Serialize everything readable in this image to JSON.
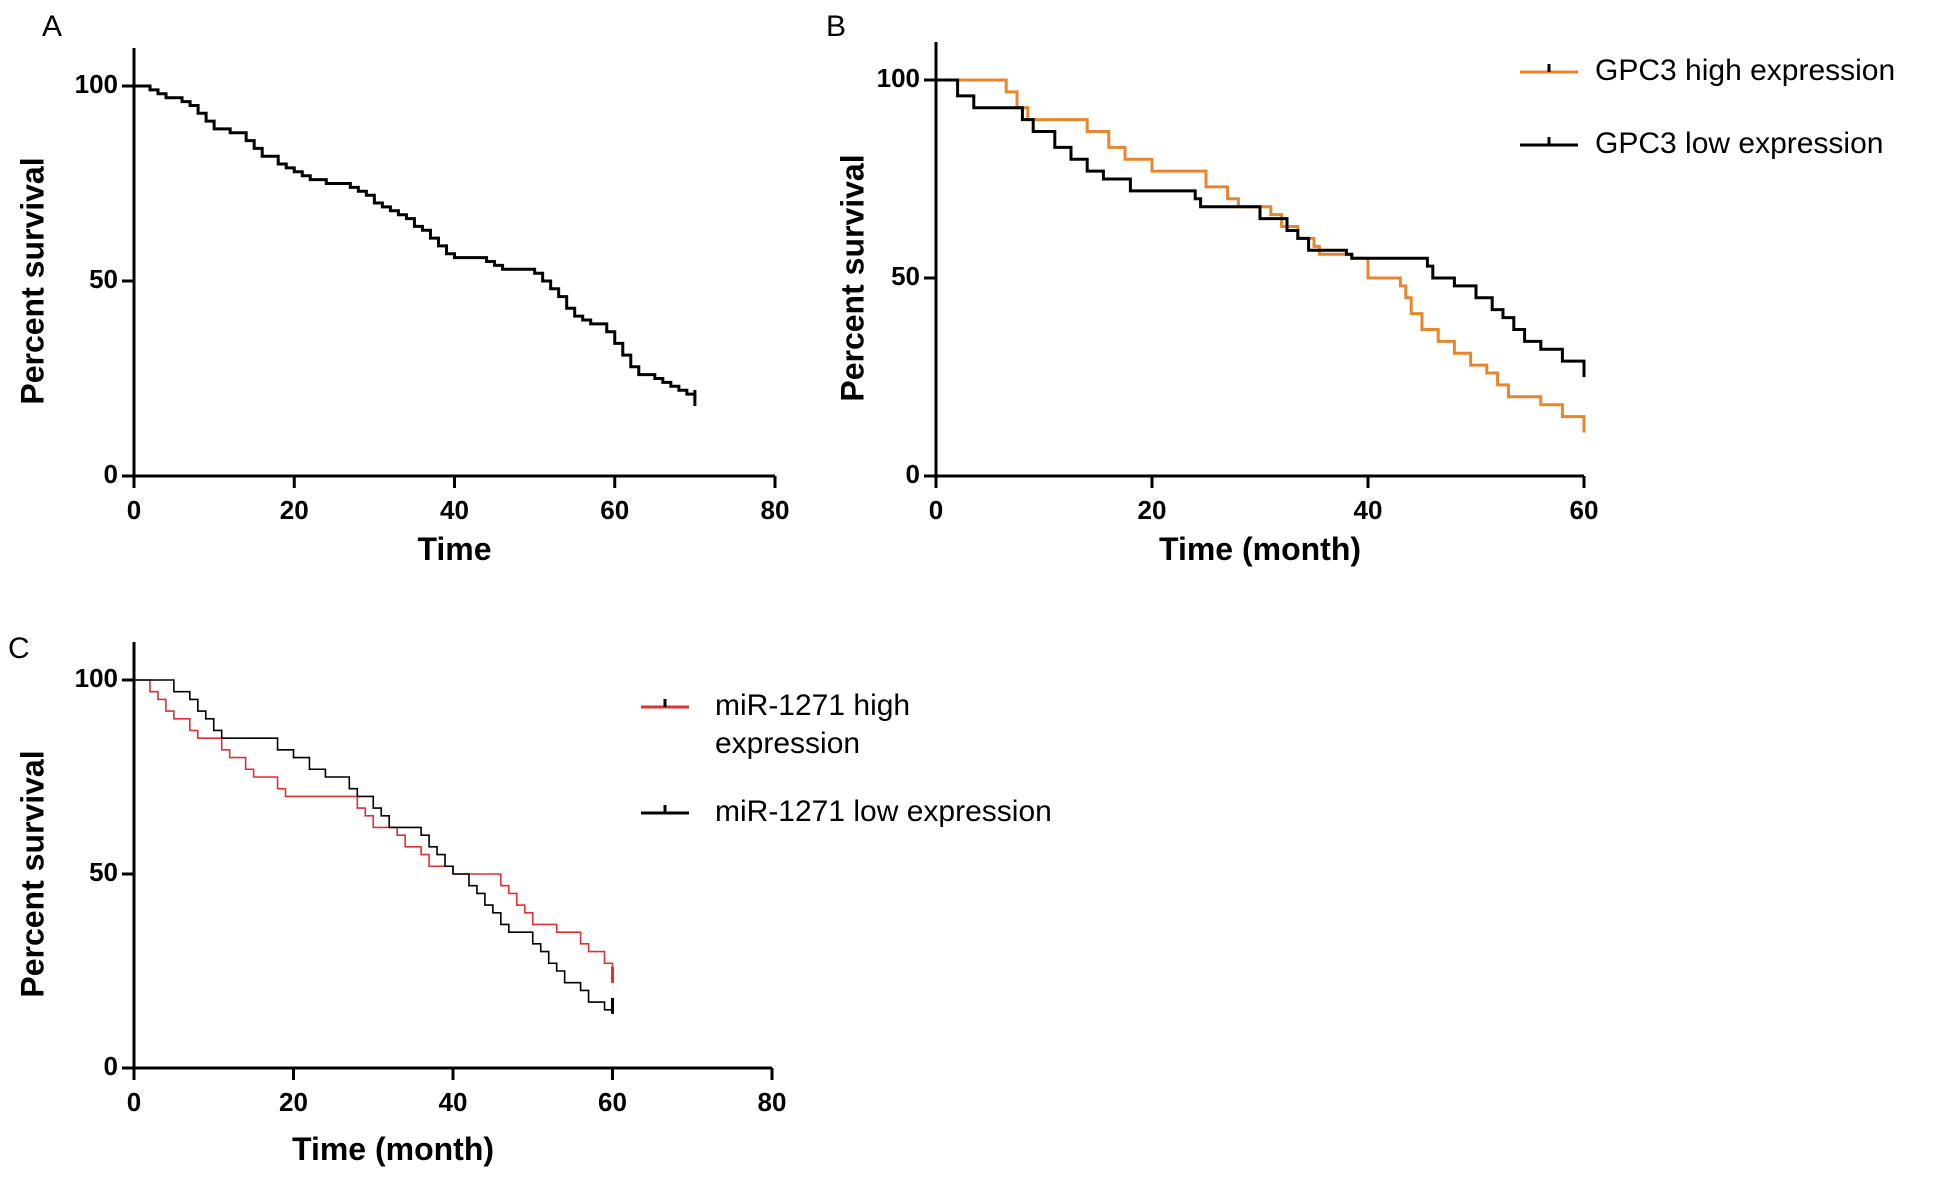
{
  "chart_data": [
    {
      "panel": "A",
      "type": "line",
      "step": true,
      "xlabel": "Time",
      "ylabel": "Percent survival",
      "xlim": [
        0,
        80
      ],
      "ylim": [
        0,
        100
      ],
      "xticks": [
        0,
        20,
        40,
        60,
        80
      ],
      "yticks": [
        0,
        50,
        100
      ],
      "legend": null,
      "series": [
        {
          "color": "#000000",
          "censor_end": true,
          "points": [
            [
              0,
              100
            ],
            [
              2,
              99
            ],
            [
              3,
              98
            ],
            [
              4,
              97
            ],
            [
              6,
              96
            ],
            [
              7,
              95
            ],
            [
              8,
              93
            ],
            [
              9,
              91
            ],
            [
              10,
              89
            ],
            [
              12,
              88
            ],
            [
              14,
              86
            ],
            [
              15,
              84
            ],
            [
              16,
              82
            ],
            [
              18,
              80
            ],
            [
              19,
              79
            ],
            [
              20,
              78
            ],
            [
              21,
              77
            ],
            [
              22,
              76
            ],
            [
              24,
              75
            ],
            [
              27,
              74
            ],
            [
              28,
              73
            ],
            [
              29,
              72
            ],
            [
              30,
              70
            ],
            [
              31,
              69
            ],
            [
              32,
              68
            ],
            [
              33,
              67
            ],
            [
              34,
              66
            ],
            [
              35,
              64
            ],
            [
              36,
              63
            ],
            [
              37,
              61
            ],
            [
              38,
              59
            ],
            [
              39,
              57
            ],
            [
              40,
              56
            ],
            [
              44,
              55
            ],
            [
              45,
              54
            ],
            [
              46,
              53
            ],
            [
              50,
              52
            ],
            [
              51,
              50
            ],
            [
              52,
              48
            ],
            [
              53,
              46
            ],
            [
              54,
              43
            ],
            [
              55,
              41
            ],
            [
              56,
              40
            ],
            [
              57,
              39
            ],
            [
              59,
              37
            ],
            [
              60,
              34
            ],
            [
              61,
              31
            ],
            [
              62,
              28
            ],
            [
              63,
              26
            ],
            [
              65,
              25
            ],
            [
              66,
              24
            ],
            [
              67,
              23
            ],
            [
              68,
              22
            ],
            [
              69,
              21
            ],
            [
              70,
              20
            ]
          ]
        }
      ]
    },
    {
      "panel": "B",
      "type": "line",
      "step": true,
      "xlabel": "Time (month)",
      "ylabel": "Percent survival",
      "xlim": [
        0,
        60
      ],
      "ylim": [
        0,
        100
      ],
      "xticks": [
        0,
        20,
        40,
        60
      ],
      "yticks": [
        0,
        50,
        100
      ],
      "legend": "top-right",
      "series": [
        {
          "name": "GPC3 high expression",
          "color": "#E8862D",
          "censor_end": true,
          "points": [
            [
              0,
              100
            ],
            [
              6.5,
              97
            ],
            [
              7.5,
              93
            ],
            [
              8.5,
              90
            ],
            [
              14,
              87
            ],
            [
              16,
              83
            ],
            [
              17.5,
              80
            ],
            [
              20,
              77
            ],
            [
              25,
              73
            ],
            [
              27,
              70
            ],
            [
              28,
              68
            ],
            [
              31,
              66
            ],
            [
              32,
              63
            ],
            [
              33.5,
              60
            ],
            [
              35,
              58
            ],
            [
              35.5,
              56
            ],
            [
              38.5,
              55
            ],
            [
              40,
              50
            ],
            [
              43,
              48
            ],
            [
              43.5,
              45
            ],
            [
              44,
              41
            ],
            [
              45,
              37
            ],
            [
              46.5,
              34
            ],
            [
              48,
              31
            ],
            [
              49.5,
              28
            ],
            [
              51,
              26
            ],
            [
              52,
              23
            ],
            [
              53,
              20
            ],
            [
              56,
              18
            ],
            [
              58,
              15
            ],
            [
              60,
              13
            ]
          ]
        },
        {
          "name": "GPC3 low expression",
          "color": "#000000",
          "censor_end": true,
          "points": [
            [
              0,
              100
            ],
            [
              2,
              96
            ],
            [
              3.5,
              93
            ],
            [
              8,
              90
            ],
            [
              9,
              87
            ],
            [
              11,
              83
            ],
            [
              12.5,
              80
            ],
            [
              14,
              77
            ],
            [
              15.5,
              75
            ],
            [
              18,
              72
            ],
            [
              24,
              70
            ],
            [
              24.5,
              68
            ],
            [
              30,
              65
            ],
            [
              32.5,
              62
            ],
            [
              33.5,
              60
            ],
            [
              34.5,
              57
            ],
            [
              38,
              56
            ],
            [
              38.5,
              55
            ],
            [
              45.5,
              53
            ],
            [
              46,
              50
            ],
            [
              48,
              48
            ],
            [
              50,
              45
            ],
            [
              51.5,
              42
            ],
            [
              52.5,
              40
            ],
            [
              53.5,
              37
            ],
            [
              54.5,
              34
            ],
            [
              56,
              32
            ],
            [
              58,
              29
            ],
            [
              60,
              27
            ]
          ]
        }
      ]
    },
    {
      "panel": "C",
      "type": "line",
      "step": true,
      "xlabel": "Time (month)",
      "ylabel": "Percent survival",
      "xlim": [
        0,
        80
      ],
      "ylim": [
        0,
        100
      ],
      "xticks": [
        0,
        20,
        40,
        60,
        80
      ],
      "yticks": [
        0,
        50,
        100
      ],
      "legend": "right",
      "series": [
        {
          "name": "miR-1271 high expression",
          "legend_lines": [
            "miR-1271 high",
            "expression"
          ],
          "color": "#E03131",
          "censor_end": true,
          "points": [
            [
              0,
              100
            ],
            [
              2,
              97
            ],
            [
              3,
              95
            ],
            [
              4,
              92
            ],
            [
              5,
              90
            ],
            [
              7,
              87
            ],
            [
              8,
              85
            ],
            [
              11,
              82
            ],
            [
              12,
              80
            ],
            [
              14,
              77
            ],
            [
              15,
              75
            ],
            [
              18,
              72
            ],
            [
              19,
              70
            ],
            [
              28,
              67
            ],
            [
              29,
              65
            ],
            [
              30,
              62
            ],
            [
              33,
              60
            ],
            [
              34,
              57
            ],
            [
              36,
              55
            ],
            [
              37,
              52
            ],
            [
              40,
              50
            ],
            [
              46,
              47
            ],
            [
              47,
              45
            ],
            [
              48,
              42
            ],
            [
              49,
              40
            ],
            [
              50,
              37
            ],
            [
              53,
              35
            ],
            [
              56,
              32
            ],
            [
              57,
              30
            ],
            [
              59,
              27
            ],
            [
              60,
              24
            ]
          ]
        },
        {
          "name": "miR-1271 low expression",
          "color": "#000000",
          "censor_end": true,
          "points": [
            [
              0,
              100
            ],
            [
              5,
              97
            ],
            [
              7,
              95
            ],
            [
              8,
              92
            ],
            [
              9,
              90
            ],
            [
              10,
              87
            ],
            [
              11,
              85
            ],
            [
              18,
              82
            ],
            [
              20,
              80
            ],
            [
              22,
              77
            ],
            [
              24,
              75
            ],
            [
              27,
              72
            ],
            [
              28,
              70
            ],
            [
              30,
              67
            ],
            [
              31,
              65
            ],
            [
              32,
              62
            ],
            [
              36,
              60
            ],
            [
              37,
              57
            ],
            [
              38,
              55
            ],
            [
              39,
              52
            ],
            [
              40,
              50
            ],
            [
              42,
              47
            ],
            [
              43,
              45
            ],
            [
              44,
              42
            ],
            [
              45,
              40
            ],
            [
              46,
              37
            ],
            [
              47,
              35
            ],
            [
              50,
              32
            ],
            [
              51,
              30
            ],
            [
              52,
              27
            ],
            [
              53,
              25
            ],
            [
              54,
              22
            ],
            [
              56,
              20
            ],
            [
              57,
              17
            ],
            [
              59,
              15
            ],
            [
              60,
              16
            ]
          ]
        }
      ]
    }
  ]
}
